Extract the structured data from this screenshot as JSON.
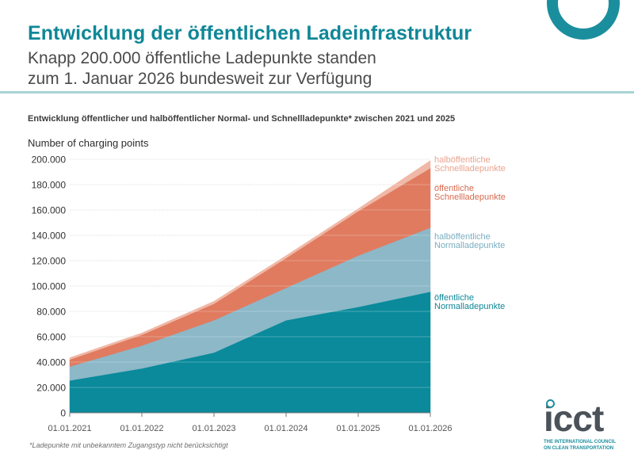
{
  "header": {
    "title": "Entwicklung der öffentlichen Ladeinfrastruktur",
    "subtitle_line1": "Knapp 200.000 öffentliche Ladepunkte standen",
    "subtitle_line2": "zum 1. Januar 2026 bundesweit zur Verfügung"
  },
  "footnote": "*Ladepunkte mit unbekanntem Zugangstyp nicht berücksichtigt",
  "logo": {
    "wordmark": "icct",
    "tagline_line1": "THE INTERNATIONAL COUNCIL",
    "tagline_line2": "ON CLEAN TRANSPORTATION"
  },
  "colors": {
    "brand_teal": "#0f8797",
    "oeff_normal": "#0a8a9b",
    "halboeff_normal": "#8cb8c8",
    "oeff_schnell": "#e07b60",
    "halboeff_schnell": "#f0b8a6"
  },
  "chart_data": {
    "type": "area",
    "stacked": true,
    "title": "Entwicklung öffentlicher und halböffentlicher Normal- und Schnellladepunkte* zwischen 2021 und 2025",
    "xlabel": "",
    "ylabel": "Number of charging points",
    "x": [
      "01.01.2021",
      "01.01.2022",
      "01.01.2023",
      "01.01.2024",
      "01.01.2025",
      "01.01.2026"
    ],
    "ylim": [
      0,
      200000
    ],
    "yticks": [
      0,
      20000,
      40000,
      60000,
      80000,
      100000,
      120000,
      140000,
      160000,
      180000,
      200000
    ],
    "ytick_labels": [
      "0",
      "20.000",
      "40.000",
      "60.000",
      "80.000",
      "100.000",
      "120.000",
      "140.000",
      "160.000",
      "180.000",
      "200.000"
    ],
    "grid": true,
    "legend_placement": "right (inline labels)",
    "series": [
      {
        "name": "öffentliche Normalladepunkte",
        "label_line1": "öffentliche",
        "label_line2": "Normalladepunkte",
        "color": "#0a8a9b",
        "label_color": "#0f8797",
        "values": [
          25500,
          35000,
          47500,
          73000,
          83500,
          95500
        ]
      },
      {
        "name": "halböffentliche Normalladepunkte",
        "label_line1": "halböffentliche",
        "label_line2": "Normalladepunkte",
        "color": "#8cb8c8",
        "label_color": "#7aaec0",
        "values": [
          11000,
          18000,
          25500,
          25500,
          40500,
          50500
        ]
      },
      {
        "name": "öffentliche Schnellladepunkte",
        "label_line1": "öffentliche",
        "label_line2": "Schnellladepunkte",
        "color": "#e07b60",
        "label_color": "#d86a4f",
        "values": [
          5500,
          8500,
          13000,
          23500,
          35000,
          47000
        ]
      },
      {
        "name": "halböffentliche Schnellladepunkte",
        "label_line1": "halböffentliche",
        "label_line2": "Schnellladepunkte",
        "color": "#f0b8a6",
        "label_color": "#e9a48f",
        "values": [
          1500,
          1500,
          2000,
          2000,
          2000,
          6000
        ]
      }
    ]
  }
}
